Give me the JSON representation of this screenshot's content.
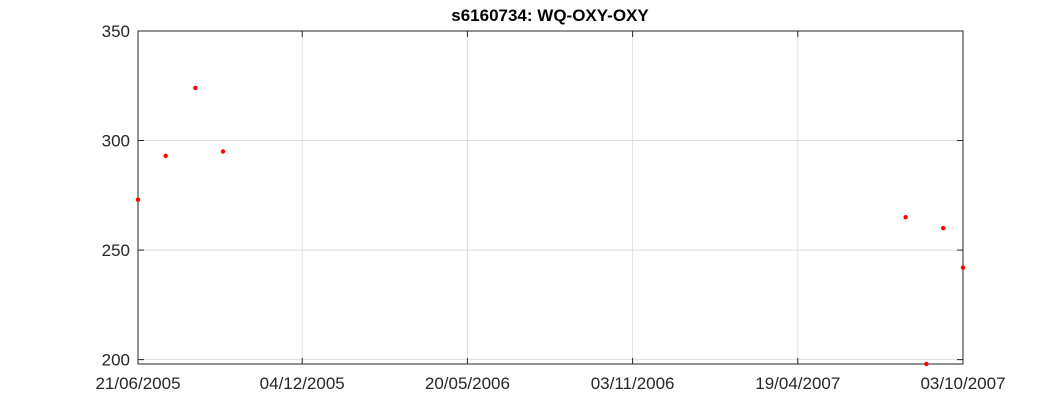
{
  "chart_data": {
    "type": "scatter",
    "title": "s6160734: WQ-OXY-OXY",
    "xlabel": "",
    "ylabel": "",
    "x_axis_type": "date",
    "xlim": [
      "2005-06-21",
      "2007-10-03"
    ],
    "ylim": [
      198,
      350
    ],
    "x_ticks": [
      "2005-06-21",
      "2005-12-04",
      "2006-05-20",
      "2006-11-03",
      "2007-04-19",
      "2007-10-03"
    ],
    "x_tick_labels": [
      "21/06/2005",
      "04/12/2005",
      "20/05/2006",
      "03/11/2006",
      "19/04/2007",
      "03/10/2007"
    ],
    "y_ticks": [
      200,
      250,
      300,
      350
    ],
    "y_tick_labels": [
      "200",
      "250",
      "300",
      "350"
    ],
    "grid": true,
    "marker_color": "#ff0000",
    "series": [
      {
        "x": [
          "2005-06-21",
          "2005-07-19",
          "2005-08-18",
          "2005-09-15",
          "2007-08-06",
          "2007-08-27",
          "2007-09-13",
          "2007-10-03"
        ],
        "y": [
          273,
          293,
          324,
          295,
          265,
          198,
          260,
          242
        ]
      }
    ]
  }
}
